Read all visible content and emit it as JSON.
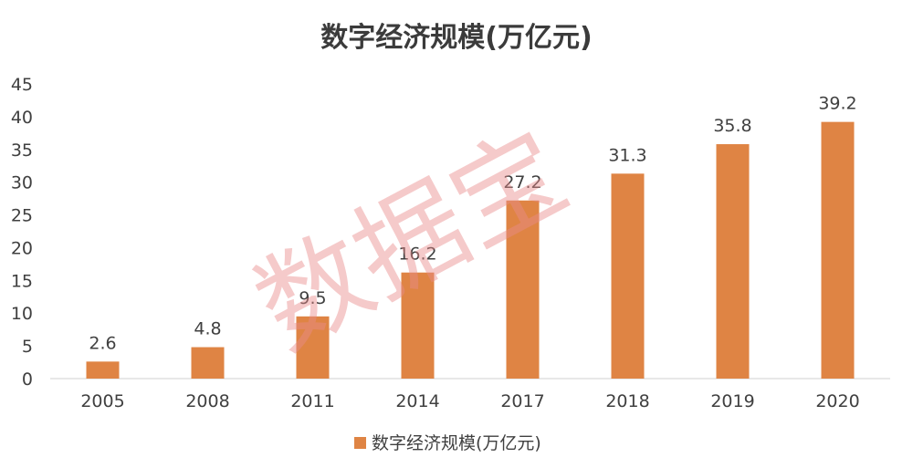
{
  "chart_data": {
    "type": "bar",
    "title": "数字经济规模(万亿元)",
    "categories": [
      "2005",
      "2008",
      "2011",
      "2014",
      "2017",
      "2018",
      "2019",
      "2020"
    ],
    "series": [
      {
        "name": "数字经济规模(万亿元)",
        "values": [
          2.6,
          4.8,
          9.5,
          16.2,
          27.2,
          31.3,
          35.8,
          39.2
        ],
        "color": "#DF8444"
      }
    ],
    "data_labels": [
      "2.6",
      "4.8",
      "9.5",
      "16.2",
      "27.2",
      "31.3",
      "35.8",
      "39.2"
    ],
    "xlabel": "",
    "ylabel": "",
    "ylim": [
      0,
      45
    ],
    "yticks": [
      0,
      5,
      10,
      15,
      20,
      25,
      30,
      35,
      40,
      45
    ],
    "ytick_labels": [
      "0",
      "5",
      "10",
      "15",
      "20",
      "25",
      "30",
      "35",
      "40",
      "45"
    ],
    "grid": false,
    "legend_position": "bottom"
  },
  "watermark": "数据宝"
}
